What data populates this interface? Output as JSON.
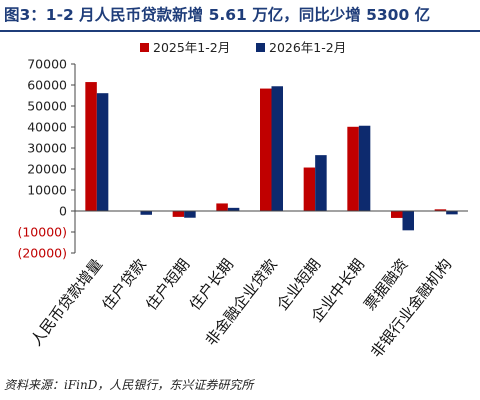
{
  "title": "图3：1-2 月人民币贷款新增 5.61 万亿，同比少增 5300 亿",
  "source": "资料来源：iFinD，人民银行，东兴证券研究所",
  "chart_data": {
    "type": "bar",
    "categories": [
      "人民币贷款增量",
      "住户贷款",
      "住户短期",
      "住户长期",
      "非金融企业贷款",
      "企业短期",
      "企业中长期",
      "票据融资",
      "非银行业金融机构"
    ],
    "series": [
      {
        "name": "2025年1-2月",
        "color": "#c00000",
        "values": [
          61400,
          200,
          -2800,
          3600,
          58300,
          20700,
          40100,
          -3300,
          800
        ]
      },
      {
        "name": "2026年1-2月",
        "color": "#0d2a6e",
        "values": [
          56100,
          -1800,
          -3200,
          1500,
          59400,
          26600,
          40600,
          -9200,
          -1600
        ]
      }
    ],
    "ylim": [
      -20000,
      70000
    ],
    "yticks": [
      70000,
      60000,
      50000,
      40000,
      30000,
      20000,
      10000,
      0,
      -10000,
      -20000
    ],
    "ytick_labels": [
      "70000",
      "60000",
      "50000",
      "40000",
      "30000",
      "20000",
      "10000",
      "0",
      "(10000)",
      "(20000)"
    ],
    "negative_tick_color": "#c00000",
    "legend_position": "top-center",
    "grid": false
  }
}
